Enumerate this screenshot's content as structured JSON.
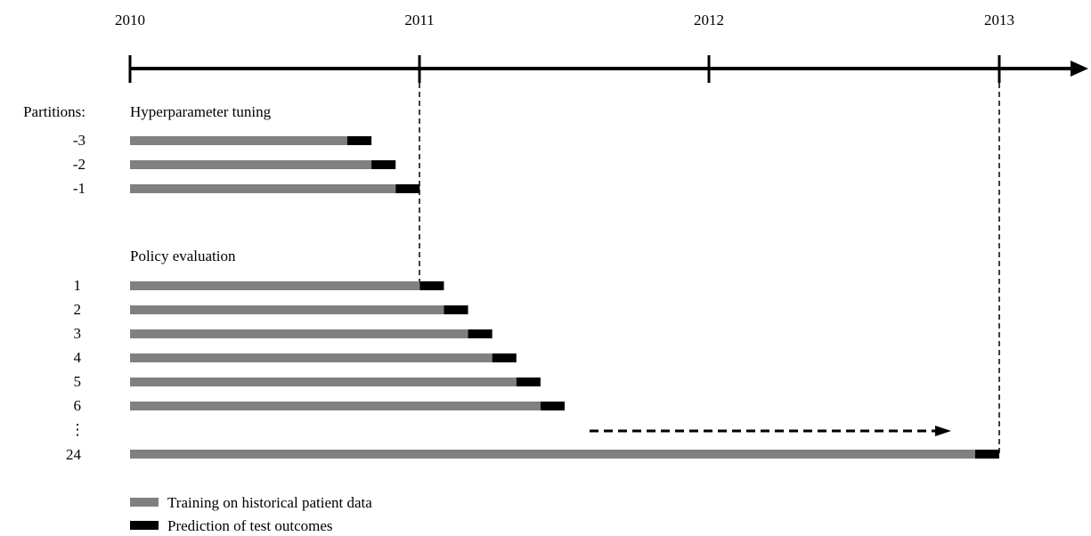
{
  "colors": {
    "training": "#808080",
    "prediction": "#000000",
    "axis": "#000000",
    "background": "#ffffff"
  },
  "timeline": {
    "years": [
      "2010",
      "2011",
      "2012",
      "2013"
    ]
  },
  "partitions_label": "Partitions:",
  "sections": {
    "tuning_title": "Hyperparameter tuning",
    "evaluation_title": "Policy evaluation"
  },
  "rows": {
    "tuning": [
      {
        "label": "-3",
        "train_start": "2010-01",
        "train_end": "2010-10",
        "predict_end": "2010-11"
      },
      {
        "label": "-2",
        "train_start": "2010-01",
        "train_end": "2010-11",
        "predict_end": "2010-12"
      },
      {
        "label": "-1",
        "train_start": "2010-01",
        "train_end": "2010-12",
        "predict_end": "2011-01"
      }
    ],
    "evaluation": [
      {
        "label": "1",
        "train_start": "2010-01",
        "train_end": "2011-01",
        "predict_end": "2011-02"
      },
      {
        "label": "2",
        "train_start": "2010-01",
        "train_end": "2011-02",
        "predict_end": "2011-03"
      },
      {
        "label": "3",
        "train_start": "2010-01",
        "train_end": "2011-03",
        "predict_end": "2011-04"
      },
      {
        "label": "4",
        "train_start": "2010-01",
        "train_end": "2011-04",
        "predict_end": "2011-05"
      },
      {
        "label": "5",
        "train_start": "2010-01",
        "train_end": "2011-05",
        "predict_end": "2011-06"
      },
      {
        "label": "6",
        "train_start": "2010-01",
        "train_end": "2011-06",
        "predict_end": "2011-07"
      },
      {
        "label": "24",
        "train_start": "2010-01",
        "train_end": "2012-12",
        "predict_end": "2013-01"
      }
    ]
  },
  "ellipsis": "⋮",
  "legend": {
    "training_label": "Training on historical patient data",
    "prediction_label": "Prediction of test outcomes"
  }
}
